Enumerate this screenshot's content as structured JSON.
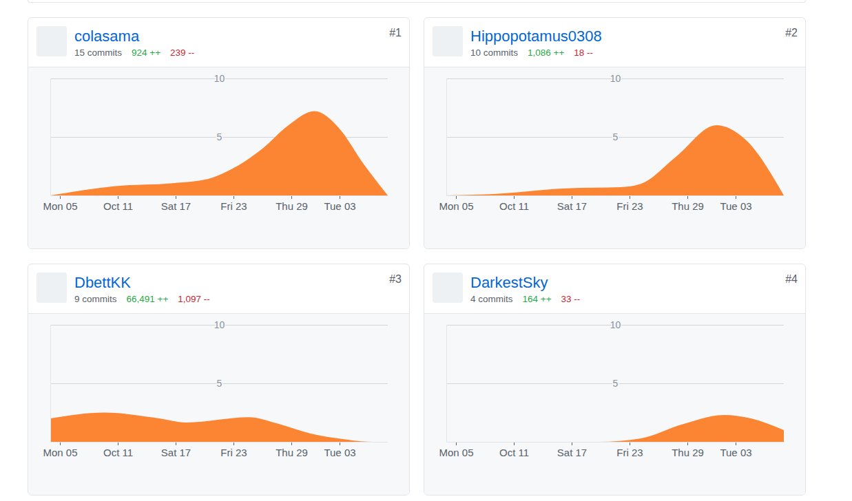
{
  "chart_data": [
    {
      "type": "area",
      "title": "colasama",
      "rank": "#1",
      "commits": "15 commits",
      "additions": "924 ++",
      "deletions": "239 --",
      "color": "#fb8532",
      "grid": true,
      "x": [
        -1,
        5.7,
        11.7,
        15.3,
        17.7,
        21,
        23.7,
        26.4,
        28.9,
        31.4,
        34
      ],
      "values": [
        0,
        0.8,
        1.05,
        1.4,
        2.2,
        4,
        6,
        7.2,
        5.8,
        2.8,
        0
      ],
      "xlim": [
        -1,
        34
      ],
      "xticks": [
        {
          "value": 0,
          "label": "Mon 05"
        },
        {
          "value": 6,
          "label": "Oct 11"
        },
        {
          "value": 12,
          "label": "Sat 17"
        },
        {
          "value": 18,
          "label": "Fri 23"
        },
        {
          "value": 24,
          "label": "Thu 29"
        },
        {
          "value": 29,
          "label": "Tue 03"
        }
      ],
      "ylim": [
        0,
        10
      ],
      "yticks": [
        5,
        10
      ]
    },
    {
      "type": "area",
      "title": "Hippopotamus0308",
      "rank": "#2",
      "commits": "10 commits",
      "additions": "1,086 ++",
      "deletions": "18 --",
      "color": "#fb8532",
      "grid": true,
      "x": [
        -1,
        3.5,
        11.4,
        17,
        19.2,
        22.8,
        27,
        30,
        34
      ],
      "values": [
        0,
        0.1,
        0.6,
        0.7,
        1.0,
        3.3,
        6.0,
        4.8,
        0
      ],
      "xlim": [
        -1,
        34
      ],
      "xticks": [
        {
          "value": 0,
          "label": "Mon 05"
        },
        {
          "value": 6,
          "label": "Oct 11"
        },
        {
          "value": 12,
          "label": "Sat 17"
        },
        {
          "value": 18,
          "label": "Fri 23"
        },
        {
          "value": 24,
          "label": "Thu 29"
        },
        {
          "value": 29,
          "label": "Tue 03"
        }
      ],
      "ylim": [
        0,
        10
      ],
      "yticks": [
        5,
        10
      ]
    },
    {
      "type": "area",
      "title": "DbettKK",
      "rank": "#3",
      "commits": "9 commits",
      "additions": "66,491 ++",
      "deletions": "1,097 --",
      "color": "#fb8532",
      "grid": true,
      "x": [
        -1,
        4.6,
        10.3,
        13.1,
        19.6,
        22.4,
        26,
        29.6,
        32.4,
        34
      ],
      "values": [
        2.0,
        2.5,
        2.0,
        1.65,
        2.1,
        1.6,
        0.7,
        0.2,
        0,
        0
      ],
      "xlim": [
        -1,
        34
      ],
      "xticks": [
        {
          "value": 0,
          "label": "Mon 05"
        },
        {
          "value": 6,
          "label": "Oct 11"
        },
        {
          "value": 12,
          "label": "Sat 17"
        },
        {
          "value": 18,
          "label": "Fri 23"
        },
        {
          "value": 24,
          "label": "Thu 29"
        },
        {
          "value": 29,
          "label": "Tue 03"
        }
      ],
      "ylim": [
        0,
        10
      ],
      "yticks": [
        5,
        10
      ]
    },
    {
      "type": "area",
      "title": "DarkestSky",
      "rank": "#4",
      "commits": "4 commits",
      "additions": "164 ++",
      "deletions": "33 --",
      "color": "#fb8532",
      "grid": true,
      "x": [
        -1,
        14.8,
        19.2,
        23.5,
        27.8,
        30.6,
        34
      ],
      "values": [
        0,
        0,
        0.3,
        1.5,
        2.3,
        2.0,
        1.0
      ],
      "xlim": [
        -1,
        34
      ],
      "xticks": [
        {
          "value": 0,
          "label": "Mon 05"
        },
        {
          "value": 6,
          "label": "Oct 11"
        },
        {
          "value": 12,
          "label": "Sat 17"
        },
        {
          "value": 18,
          "label": "Fri 23"
        },
        {
          "value": 24,
          "label": "Thu 29"
        },
        {
          "value": 29,
          "label": "Tue 03"
        }
      ],
      "ylim": [
        0,
        10
      ],
      "yticks": [
        5,
        10
      ]
    }
  ]
}
